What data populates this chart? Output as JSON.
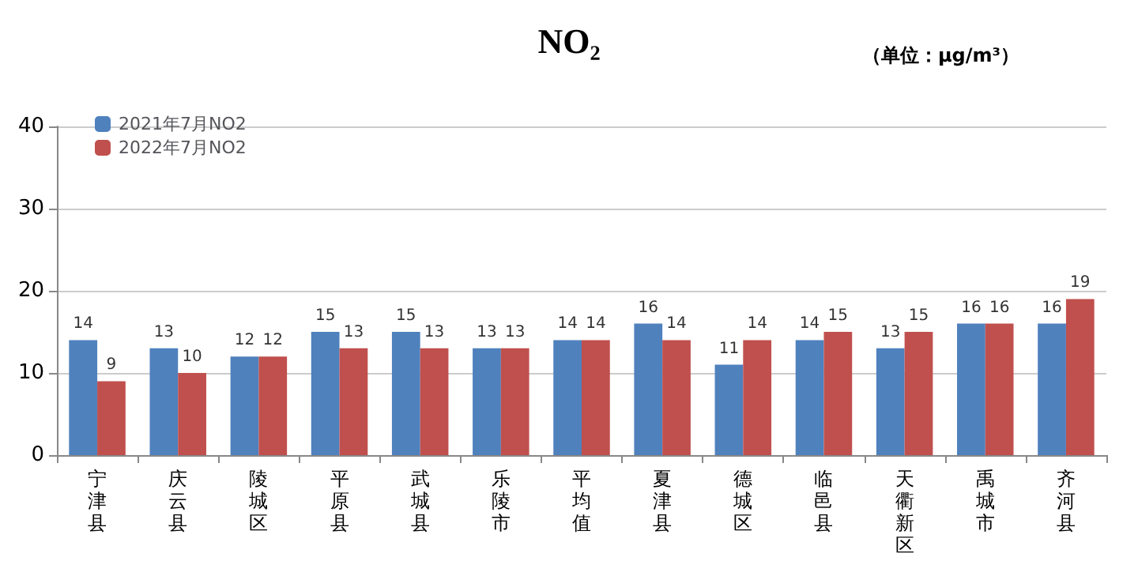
{
  "chart_data": {
    "type": "bar",
    "title": "NO₂",
    "annotations": [
      "（单位：μg/m³）"
    ],
    "categories": [
      "宁津县",
      "庆云县",
      "陵城区",
      "平原县",
      "武城县",
      "乐陵市",
      "平均值",
      "夏津县",
      "德城区",
      "临邑县",
      "天衢新区",
      "禹城市",
      "齐河县"
    ],
    "series": [
      {
        "name": "2021年7月NO2",
        "color": "#4f81bd",
        "values": [
          14,
          13,
          12,
          15,
          15,
          13,
          14,
          16,
          11,
          14,
          13,
          16,
          16
        ]
      },
      {
        "name": "2022年7月NO2",
        "color": "#c0504d",
        "values": [
          9,
          10,
          12,
          13,
          13,
          13,
          14,
          14,
          14,
          15,
          15,
          16,
          19
        ]
      }
    ],
    "ylim": [
      0,
      40
    ],
    "yticks": [
      0,
      10,
      20,
      30,
      40
    ],
    "grid": "y",
    "legend": "top left",
    "data_labels": true
  }
}
